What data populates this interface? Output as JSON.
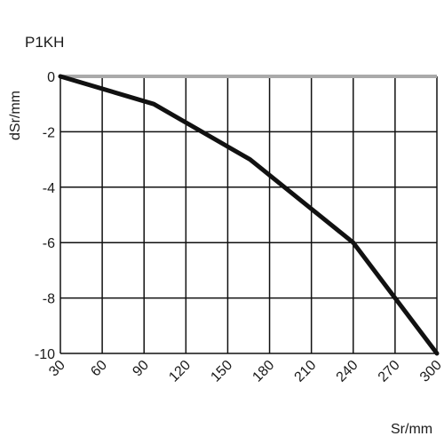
{
  "chart_data": {
    "type": "line",
    "title": "P1KH",
    "xlabel": "Sr/mm",
    "ylabel": "dSr/mm",
    "xlim": [
      30,
      300
    ],
    "ylim": [
      -10,
      0
    ],
    "x_ticks": [
      30,
      60,
      90,
      120,
      150,
      180,
      210,
      240,
      270,
      300
    ],
    "x_tick_labels": [
      "30",
      "60",
      "90",
      "120",
      "150",
      "180",
      "210",
      "240",
      "270",
      "300"
    ],
    "y_ticks": [
      0,
      -2,
      -4,
      -6,
      -8,
      -10
    ],
    "y_tick_labels": [
      "0",
      "-2",
      "-4",
      "-6",
      "-8",
      "-10"
    ],
    "grid": true,
    "series": [
      {
        "x": [
          30,
          97,
          166,
          240,
          300
        ],
        "y": [
          0,
          -1,
          -3,
          -6,
          -10
        ]
      }
    ],
    "colors": {
      "line": "#111111",
      "grid": "#111111",
      "zero_line": "#aaaaaa"
    }
  }
}
